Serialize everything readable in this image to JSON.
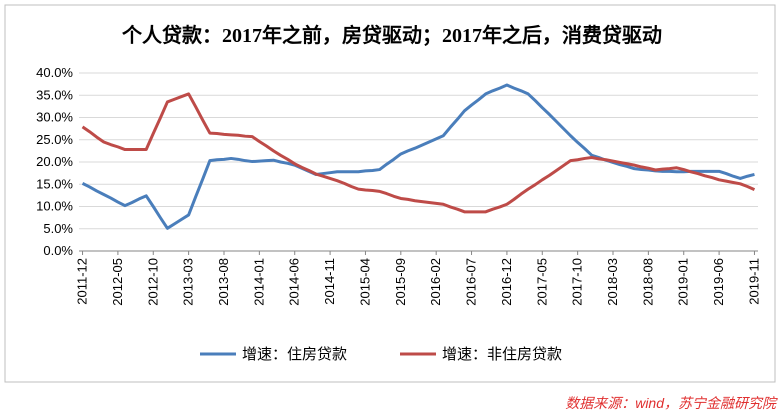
{
  "chart_data": {
    "type": "line",
    "title": "个人贷款：2017年之前，房贷驱动；2017年之后，消费贷驱动",
    "source": "数据来源：wind，苏宁金融研究院",
    "categories": [
      "2011-12",
      null,
      null,
      null,
      null,
      "2012-05",
      null,
      null,
      null,
      null,
      "2012-10",
      null,
      null,
      null,
      null,
      "2013-03",
      null,
      null,
      null,
      null,
      "2013-08",
      null,
      null,
      null,
      null,
      "2014-01",
      null,
      null,
      null,
      null,
      "2014-06",
      null,
      null,
      null,
      null,
      "2014-11",
      null,
      null,
      null,
      null,
      "2015-04",
      null,
      null,
      null,
      null,
      "2015-09",
      null,
      null,
      null,
      null,
      "2016-02",
      null,
      null,
      null,
      null,
      "2016-07",
      null,
      null,
      null,
      null,
      "2016-12",
      null,
      null,
      null,
      null,
      "2017-05",
      null,
      null,
      null,
      null,
      "2017-10",
      null,
      null,
      null,
      null,
      "2018-03",
      null,
      null,
      null,
      null,
      "2018-08",
      null,
      null,
      null,
      null,
      "2019-01",
      null,
      null,
      null,
      null,
      "2019-06",
      null,
      null,
      null,
      null,
      "2019-11"
    ],
    "series": [
      {
        "name": "增速：住房贷款",
        "color": "#4a7ebb",
        "values": [
          15.2,
          14.4,
          13.5,
          12.7,
          11.9,
          11.0,
          10.2,
          10.9,
          11.7,
          12.4,
          10.0,
          7.5,
          5.1,
          6.1,
          7.1,
          8.1,
          12.2,
          16.2,
          20.3,
          20.5,
          20.6,
          20.8,
          20.6,
          20.3,
          20.1,
          20.2,
          20.3,
          20.4,
          20.0,
          19.7,
          19.3,
          18.6,
          17.9,
          17.2,
          17.4,
          17.6,
          17.8,
          17.8,
          17.8,
          17.8,
          18.0,
          18.1,
          18.3,
          19.5,
          20.6,
          21.8,
          22.5,
          23.1,
          23.8,
          24.5,
          25.2,
          25.9,
          27.8,
          29.6,
          31.5,
          32.8,
          34.0,
          35.3,
          36.0,
          36.6,
          37.3,
          36.6,
          36.0,
          35.3,
          33.8,
          32.2,
          30.7,
          29.1,
          27.5,
          25.9,
          24.4,
          23.0,
          21.5,
          21.0,
          20.4,
          19.9,
          19.4,
          19.0,
          18.5,
          18.3,
          18.2,
          18.0,
          17.9,
          17.9,
          17.8,
          17.8,
          17.9,
          17.9,
          17.9,
          17.9,
          17.9,
          17.4,
          16.8,
          16.3,
          16.8,
          17.2
        ]
      },
      {
        "name": "增速：非住房贷款",
        "color": "#be4b48",
        "values": [
          27.9,
          26.8,
          25.6,
          24.5,
          23.9,
          23.4,
          22.8,
          22.8,
          22.8,
          22.8,
          26.4,
          29.9,
          33.5,
          34.1,
          34.7,
          35.3,
          32.4,
          29.4,
          26.5,
          26.4,
          26.2,
          26.1,
          26.0,
          25.8,
          25.7,
          24.6,
          23.6,
          22.5,
          21.5,
          20.6,
          19.6,
          18.8,
          18.1,
          17.3,
          16.8,
          16.3,
          15.8,
          15.2,
          14.5,
          13.9,
          13.7,
          13.6,
          13.4,
          12.9,
          12.3,
          11.8,
          11.6,
          11.3,
          11.1,
          10.9,
          10.7,
          10.5,
          9.9,
          9.4,
          8.8,
          8.8,
          8.8,
          8.8,
          9.4,
          9.9,
          10.5,
          11.6,
          12.8,
          13.9,
          14.9,
          16.0,
          17.0,
          18.1,
          19.2,
          20.3,
          20.5,
          20.8,
          21.0,
          20.7,
          20.5,
          20.2,
          19.9,
          19.6,
          19.3,
          18.9,
          18.6,
          18.2,
          18.4,
          18.5,
          18.7,
          18.3,
          17.8,
          17.4,
          16.9,
          16.5,
          16.0,
          15.7,
          15.4,
          15.1,
          14.5,
          13.8
        ]
      }
    ],
    "ylim": [
      0,
      40
    ],
    "yticks": [
      {
        "value": 0,
        "label": "0.0%"
      },
      {
        "value": 5,
        "label": "5.0%"
      },
      {
        "value": 10,
        "label": "10.0%"
      },
      {
        "value": 15,
        "label": "15.0%"
      },
      {
        "value": 20,
        "label": "20.0%"
      },
      {
        "value": 25,
        "label": "25.0%"
      },
      {
        "value": 30,
        "label": "30.0%"
      },
      {
        "value": 35,
        "label": "35.0%"
      },
      {
        "value": 40,
        "label": "40.0%"
      }
    ],
    "grid": true,
    "legend": "bottom"
  }
}
